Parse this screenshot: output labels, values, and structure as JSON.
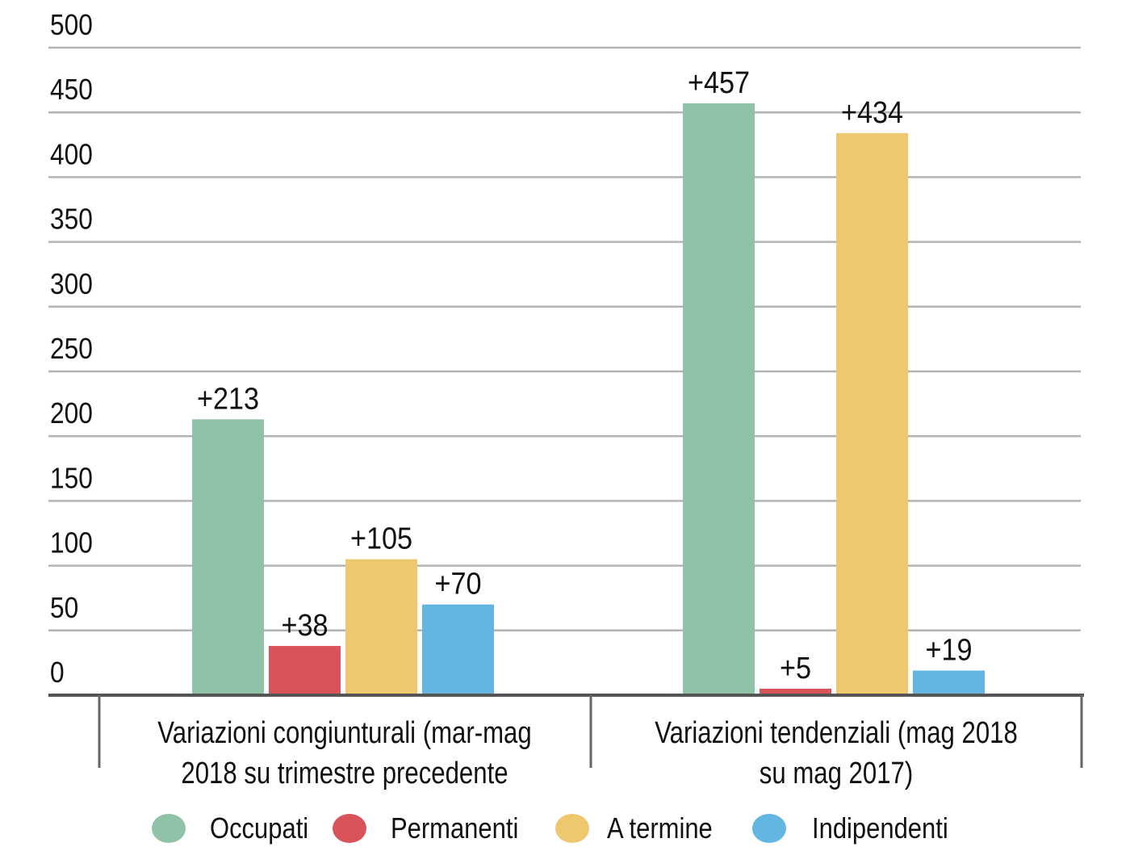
{
  "chart_data": {
    "type": "bar",
    "title": "",
    "xlabel": "",
    "ylabel": "",
    "ylim": [
      0,
      500
    ],
    "yticks": [
      0,
      50,
      100,
      150,
      200,
      250,
      300,
      350,
      400,
      450,
      500
    ],
    "grid": true,
    "legend_position": "bottom",
    "categories": [
      [
        "Variazioni congiunturali (mar-mag",
        "2018 su trimestre precedente"
      ],
      [
        "Variazioni tendenziali (mag 2018",
        "su mag 2017)"
      ]
    ],
    "series": [
      {
        "name": "Occupati",
        "color": "#8fc2a6",
        "values": [
          213,
          457
        ],
        "labels": [
          "+213",
          "+457"
        ]
      },
      {
        "name": "Permanenti",
        "color": "#d9545a",
        "values": [
          38,
          5
        ],
        "labels": [
          "+38",
          "+5"
        ]
      },
      {
        "name": "A termine",
        "color": "#eec86e",
        "values": [
          105,
          434
        ],
        "labels": [
          "+105",
          "+434"
        ]
      },
      {
        "name": "Indipendenti",
        "color": "#63b6e2",
        "values": [
          70,
          19
        ],
        "labels": [
          "+70",
          "+19"
        ]
      }
    ]
  },
  "colors": {
    "gridline": "#b3b3b3",
    "axis": "#555555",
    "text": "#111111"
  }
}
